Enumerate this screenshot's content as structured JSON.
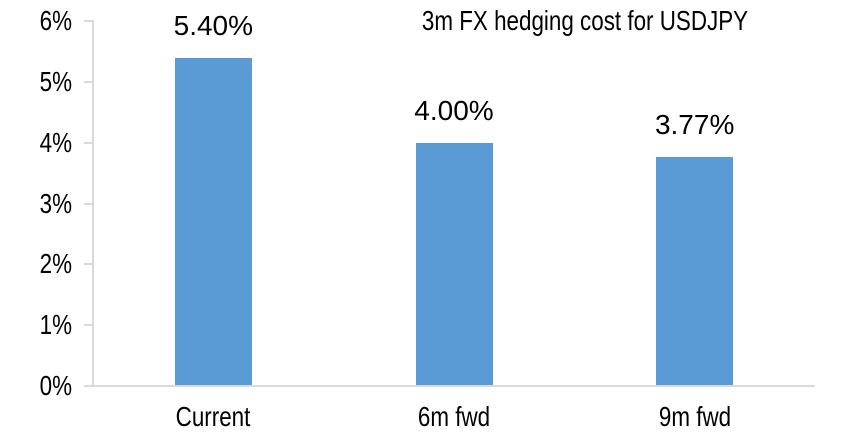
{
  "chart_data": {
    "type": "bar",
    "title": "3m FX hedging cost for USDJPY",
    "categories": [
      "Current",
      "6m fwd",
      "9m fwd"
    ],
    "values": [
      5.4,
      4.0,
      3.77
    ],
    "value_labels": [
      "5.40%",
      "4.00%",
      "3.77%"
    ],
    "xlabel": "",
    "ylabel": "",
    "ylim": [
      0,
      6
    ],
    "ytick_step": 1,
    "ytick_labels": [
      "0%",
      "1%",
      "2%",
      "3%",
      "4%",
      "5%",
      "6%"
    ],
    "grid": false,
    "legend": "none",
    "bar_color": "#5B9BD5",
    "axis_line_color": "#D9D9D9",
    "text_color": "#000000",
    "background_color": "#FFFFFF"
  }
}
